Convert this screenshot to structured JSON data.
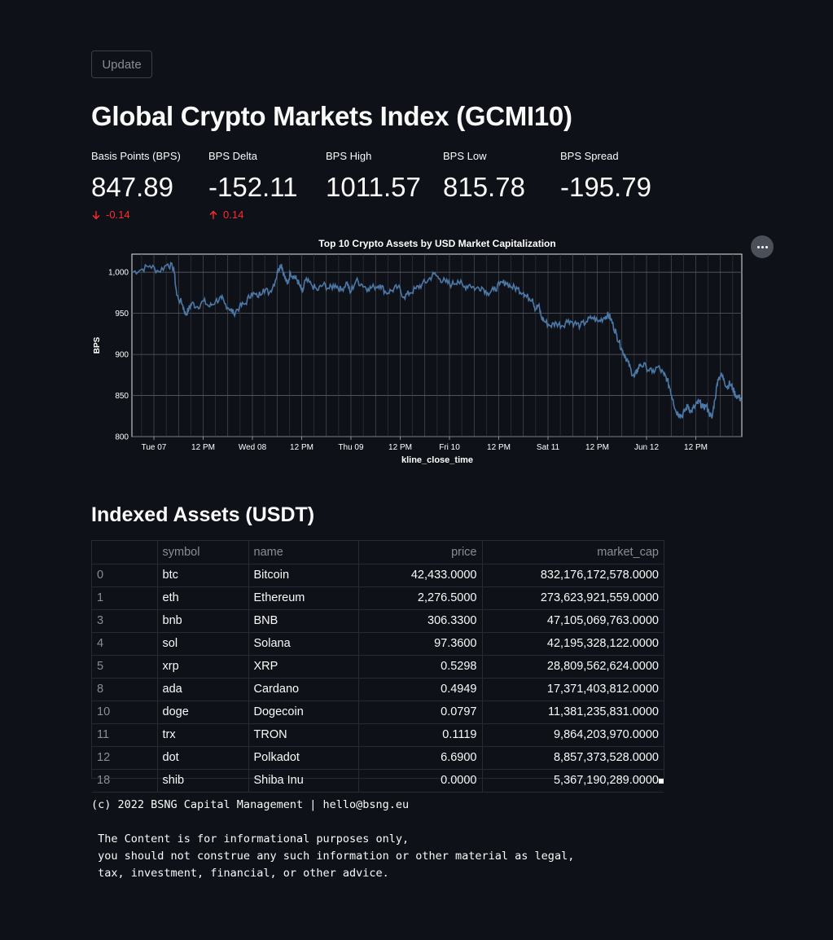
{
  "update_button": {
    "label": "Update"
  },
  "page_title": "Global Crypto Markets Index (GCMI10)",
  "metrics": [
    {
      "label": "Basis Points (BPS)",
      "value": "847.89",
      "delta": "-0.14",
      "direction": "down"
    },
    {
      "label": "BPS Delta",
      "value": "-152.11",
      "delta": "0.14",
      "direction": "up"
    },
    {
      "label": "BPS High",
      "value": "1011.57",
      "delta": "",
      "direction": ""
    },
    {
      "label": "BPS Low",
      "value": "815.78",
      "delta": "",
      "direction": ""
    },
    {
      "label": "BPS Spread",
      "value": "-195.79",
      "delta": "",
      "direction": ""
    }
  ],
  "chart_data": {
    "type": "line",
    "title": "Top 10 Crypto Assets by USD Market Capitalization",
    "xlabel": "kline_close_time",
    "ylabel": "BPS",
    "ylim": [
      800,
      1022
    ],
    "yticks": [
      800,
      850,
      900,
      950,
      1000
    ],
    "ytick_labels": [
      "800",
      "850",
      "900",
      "950",
      "1,000"
    ],
    "xticks": [
      "Tue 07",
      "12 PM",
      "Wed 08",
      "12 PM",
      "Thu 09",
      "12 PM",
      "Fri 10",
      "12 PM",
      "Sat 11",
      "12 PM",
      "Jun 12",
      "12 PM"
    ],
    "grid": true,
    "line_color": "#4c78a8",
    "points": [
      [
        0,
        1000
      ],
      [
        3,
        1003
      ],
      [
        6,
        1008
      ],
      [
        9,
        1001
      ],
      [
        12,
        1010
      ],
      [
        14,
        1005
      ],
      [
        15,
        972
      ],
      [
        17,
        960
      ],
      [
        18,
        948
      ],
      [
        19,
        955
      ],
      [
        20,
        962
      ],
      [
        22,
        958
      ],
      [
        24,
        965
      ],
      [
        26,
        958
      ],
      [
        28,
        965
      ],
      [
        30,
        968
      ],
      [
        31,
        962
      ],
      [
        33,
        955
      ],
      [
        34,
        950
      ],
      [
        36,
        958
      ],
      [
        38,
        962
      ],
      [
        40,
        975
      ],
      [
        42,
        970
      ],
      [
        44,
        980
      ],
      [
        46,
        975
      ],
      [
        48,
        990
      ],
      [
        49,
        1005
      ],
      [
        50,
        1010
      ],
      [
        51,
        995
      ],
      [
        52,
        985
      ],
      [
        53,
        1000
      ],
      [
        54,
        995
      ],
      [
        55,
        992
      ],
      [
        56,
        985
      ],
      [
        57,
        975
      ],
      [
        58,
        990
      ],
      [
        60,
        985
      ],
      [
        62,
        978
      ],
      [
        64,
        985
      ],
      [
        66,
        980
      ],
      [
        68,
        985
      ],
      [
        70,
        978
      ],
      [
        72,
        988
      ],
      [
        73,
        975
      ],
      [
        75,
        990
      ],
      [
        77,
        985
      ],
      [
        79,
        980
      ],
      [
        81,
        982
      ],
      [
        83,
        985
      ],
      [
        85,
        975
      ],
      [
        87,
        978
      ],
      [
        89,
        982
      ],
      [
        91,
        970
      ],
      [
        93,
        975
      ],
      [
        95,
        980
      ],
      [
        97,
        985
      ],
      [
        99,
        990
      ],
      [
        101,
        998
      ],
      [
        103,
        992
      ],
      [
        105,
        988
      ],
      [
        107,
        985
      ],
      [
        109,
        990
      ],
      [
        111,
        982
      ],
      [
        113,
        985
      ],
      [
        115,
        980
      ],
      [
        117,
        982
      ],
      [
        119,
        975
      ],
      [
        121,
        978
      ],
      [
        123,
        985
      ],
      [
        125,
        988
      ],
      [
        127,
        982
      ],
      [
        129,
        980
      ],
      [
        131,
        975
      ],
      [
        132,
        970
      ],
      [
        134,
        968
      ],
      [
        135,
        955
      ],
      [
        136,
        960
      ],
      [
        137,
        945
      ],
      [
        138,
        940
      ],
      [
        140,
        935
      ],
      [
        142,
        938
      ],
      [
        144,
        935
      ],
      [
        146,
        942
      ],
      [
        148,
        938
      ],
      [
        150,
        935
      ],
      [
        152,
        940
      ],
      [
        154,
        945
      ],
      [
        156,
        940
      ],
      [
        158,
        945
      ],
      [
        159,
        948
      ],
      [
        160,
        945
      ],
      [
        161,
        935
      ],
      [
        162,
        925
      ],
      [
        163,
        915
      ],
      [
        164,
        905
      ],
      [
        165,
        898
      ],
      [
        166,
        890
      ],
      [
        167,
        880
      ],
      [
        168,
        872
      ],
      [
        169,
        880
      ],
      [
        170,
        888
      ],
      [
        172,
        885
      ],
      [
        174,
        878
      ],
      [
        176,
        885
      ],
      [
        178,
        875
      ],
      [
        179,
        870
      ],
      [
        180,
        858
      ],
      [
        181,
        845
      ],
      [
        182,
        830
      ],
      [
        183,
        828
      ],
      [
        184,
        825
      ],
      [
        185,
        832
      ],
      [
        186,
        838
      ],
      [
        187,
        830
      ],
      [
        188,
        835
      ],
      [
        189,
        840
      ],
      [
        190,
        842
      ],
      [
        191,
        835
      ],
      [
        192,
        838
      ],
      [
        193,
        830
      ],
      [
        194,
        822
      ],
      [
        195,
        845
      ],
      [
        196,
        870
      ],
      [
        197,
        875
      ],
      [
        198,
        870
      ],
      [
        199,
        860
      ],
      [
        200,
        865
      ],
      [
        201,
        858
      ],
      [
        202,
        850
      ],
      [
        203,
        848
      ],
      [
        204,
        845
      ]
    ]
  },
  "table_title": "Indexed Assets (USDT)",
  "table": {
    "columns": [
      "",
      "symbol",
      "name",
      "price",
      "market_cap"
    ],
    "rows": [
      [
        "0",
        "btc",
        "Bitcoin",
        "42,433.0000",
        "832,176,172,578.0000"
      ],
      [
        "1",
        "eth",
        "Ethereum",
        "2,276.5000",
        "273,623,921,559.0000"
      ],
      [
        "3",
        "bnb",
        "BNB",
        "306.3300",
        "47,105,069,763.0000"
      ],
      [
        "4",
        "sol",
        "Solana",
        "97.3600",
        "42,195,328,122.0000"
      ],
      [
        "5",
        "xrp",
        "XRP",
        "0.5298",
        "28,809,562,624.0000"
      ],
      [
        "8",
        "ada",
        "Cardano",
        "0.4949",
        "17,371,403,812.0000"
      ],
      [
        "10",
        "doge",
        "Dogecoin",
        "0.0797",
        "11,381,235,831.0000"
      ],
      [
        "11",
        "trx",
        "TRON",
        "0.1119",
        "9,864,203,970.0000"
      ],
      [
        "12",
        "dot",
        "Polkadot",
        "6.6900",
        "8,857,373,528.0000"
      ],
      [
        "18",
        "shib",
        "Shiba Inu",
        "0.0000",
        "5,367,190,289.0000"
      ]
    ]
  },
  "footer": {
    "copyright": "(c) 2022 BSNG Capital Management | hello@bsng.eu",
    "disclaimer": " The Content is for informational purposes only,\n you should not construe any such information or other material as legal,\n tax, investment, financial, or other advice."
  },
  "colors": {
    "background": "#0e1117",
    "delta_negative": "#ff2b2b",
    "line": "#4c78a8"
  },
  "icons": {
    "down": "arrow-down-icon",
    "up": "arrow-up-icon",
    "menu": "more-horizontal-icon"
  }
}
